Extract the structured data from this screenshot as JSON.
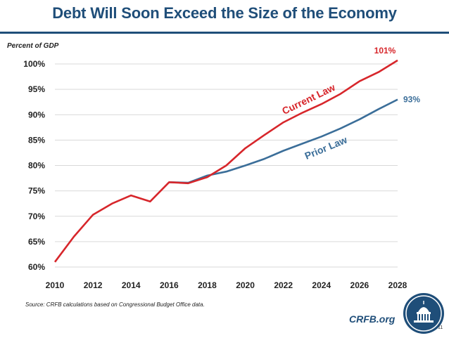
{
  "chart_data": {
    "type": "line",
    "title": "Debt Will Soon Exceed the Size of the Economy",
    "ylabel": "Percent of GDP",
    "xlim": [
      2010,
      2028
    ],
    "ylim": [
      60,
      100
    ],
    "x_ticks": [
      "2010",
      "2012",
      "2014",
      "2016",
      "2018",
      "2020",
      "2022",
      "2024",
      "2026",
      "2028"
    ],
    "y_ticks": [
      "60%",
      "65%",
      "70%",
      "75%",
      "80%",
      "85%",
      "90%",
      "95%",
      "100%"
    ],
    "grid": true,
    "series": [
      {
        "name": "Current Law",
        "color": "#d7262b",
        "x": [
          2010,
          2011,
          2012,
          2013,
          2014,
          2015,
          2016,
          2017,
          2018,
          2019,
          2020,
          2021,
          2022,
          2023,
          2024,
          2025,
          2026,
          2027,
          2028
        ],
        "values": [
          61,
          66,
          70.3,
          72.5,
          74.1,
          72.9,
          76.7,
          76.5,
          77.7,
          80,
          83.4,
          86,
          88.5,
          90.4,
          92.1,
          94.1,
          96.6,
          98.4,
          100.7
        ],
        "end_label": "101%"
      },
      {
        "name": "Prior Law",
        "color": "#3b6e99",
        "x": [
          2016,
          2017,
          2018,
          2019,
          2020,
          2021,
          2022,
          2023,
          2024,
          2025,
          2026,
          2027,
          2028
        ],
        "values": [
          76.7,
          76.6,
          78,
          78.8,
          80,
          81.3,
          82.9,
          84.3,
          85.7,
          87.3,
          89.1,
          91.1,
          93
        ],
        "end_label": "93%"
      }
    ]
  },
  "source": "Source: CRFB calculations based on Congressional Budget Office data.",
  "brand": "CRFB.org",
  "page_number": "11",
  "logo_icon": "capitol-dome-seal-icon"
}
